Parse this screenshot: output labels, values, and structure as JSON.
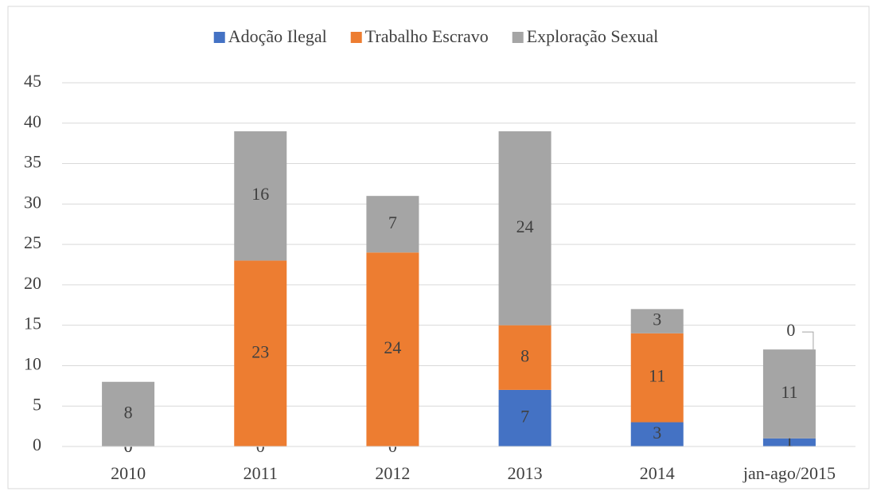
{
  "chart_data": {
    "type": "stacked_bar",
    "categories": [
      "2010",
      "2011",
      "2012",
      "2013",
      "2014",
      "jan-ago/2015"
    ],
    "series": [
      {
        "name": "Adoção Ilegal",
        "color": "#4472c4",
        "values": [
          0,
          0,
          0,
          7,
          3,
          1
        ]
      },
      {
        "name": "Trabalho Escravo",
        "color": "#ed7d31",
        "values": [
          0,
          23,
          24,
          8,
          11,
          0
        ]
      },
      {
        "name": "Exploração Sexual",
        "color": "#a5a5a5",
        "values": [
          8,
          16,
          7,
          24,
          3,
          11
        ]
      }
    ],
    "ylim": [
      0,
      45
    ],
    "yticks": [
      0,
      5,
      10,
      15,
      20,
      25,
      30,
      35,
      40,
      45
    ],
    "grid": true,
    "legend": "top"
  }
}
